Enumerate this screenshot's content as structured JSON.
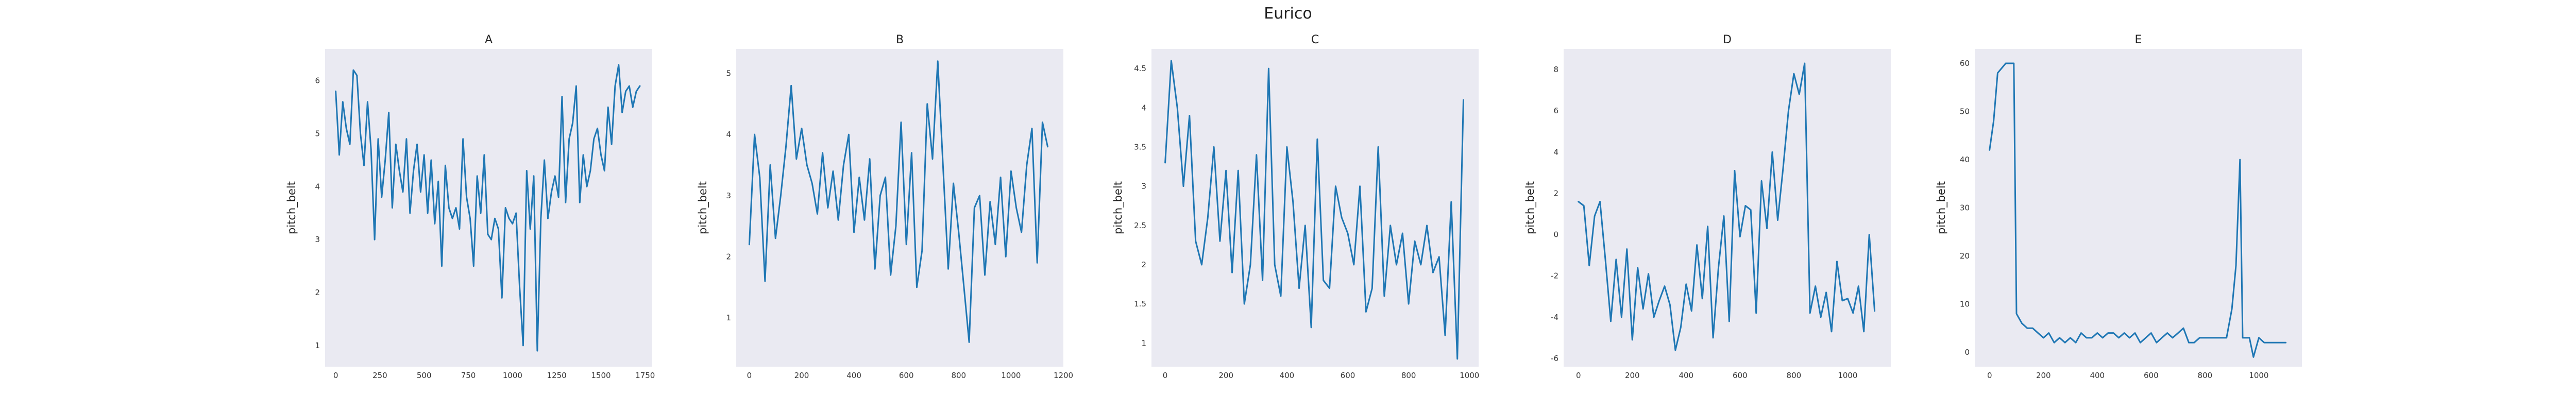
{
  "title": "Eurico",
  "series_color": "#1f77b4",
  "background_color": "#eaeaf2",
  "chart_data": [
    {
      "type": "line",
      "title": "A",
      "xlabel": "",
      "ylabel": "pitch_belt",
      "xlim": [
        -60,
        1790
      ],
      "ylim": [
        0.6,
        6.6
      ],
      "xticks": [
        0,
        250,
        500,
        750,
        1000,
        1250,
        1500,
        1750
      ],
      "yticks": [
        1,
        2,
        3,
        4,
        5,
        6
      ],
      "grid": false,
      "x": [
        0,
        20,
        40,
        60,
        80,
        100,
        120,
        140,
        160,
        180,
        200,
        220,
        240,
        260,
        280,
        300,
        320,
        340,
        360,
        380,
        400,
        420,
        440,
        460,
        480,
        500,
        520,
        540,
        560,
        580,
        600,
        620,
        640,
        660,
        680,
        700,
        720,
        740,
        760,
        780,
        800,
        820,
        840,
        860,
        880,
        900,
        920,
        940,
        960,
        980,
        1000,
        1020,
        1040,
        1060,
        1080,
        1100,
        1120,
        1140,
        1160,
        1180,
        1200,
        1220,
        1240,
        1260,
        1280,
        1300,
        1320,
        1340,
        1360,
        1380,
        1400,
        1420,
        1440,
        1460,
        1480,
        1500,
        1520,
        1540,
        1560,
        1580,
        1600,
        1620,
        1640,
        1660,
        1680,
        1700,
        1720
      ],
      "y": [
        5.8,
        4.6,
        5.6,
        5.1,
        4.8,
        6.2,
        6.1,
        5.0,
        4.4,
        5.6,
        4.7,
        3.0,
        4.9,
        3.8,
        4.5,
        5.4,
        3.6,
        4.8,
        4.3,
        3.9,
        4.9,
        3.5,
        4.3,
        4.8,
        3.9,
        4.6,
        3.5,
        4.5,
        3.3,
        4.1,
        2.5,
        4.4,
        3.6,
        3.4,
        3.6,
        3.2,
        4.9,
        3.8,
        3.4,
        2.5,
        4.2,
        3.5,
        4.6,
        3.1,
        3.0,
        3.4,
        3.2,
        1.9,
        3.6,
        3.4,
        3.3,
        3.5,
        2.1,
        1.0,
        4.3,
        3.2,
        4.2,
        0.9,
        3.4,
        4.5,
        3.4,
        3.9,
        4.2,
        3.8,
        5.7,
        3.7,
        4.9,
        5.2,
        5.9,
        3.7,
        4.6,
        4.0,
        4.3,
        4.9,
        5.1,
        4.6,
        4.3,
        5.5,
        4.8,
        5.9,
        6.3,
        5.4,
        5.8,
        5.9,
        5.5,
        5.8,
        5.9
      ]
    },
    {
      "type": "line",
      "title": "B",
      "xlabel": "",
      "ylabel": "pitch_belt",
      "xlim": [
        -50,
        1200
      ],
      "ylim": [
        0.2,
        5.4
      ],
      "xticks": [
        0,
        200,
        400,
        600,
        800,
        1000,
        1200
      ],
      "yticks": [
        1,
        2,
        3,
        4,
        5
      ],
      "grid": false,
      "x": [
        0,
        20,
        40,
        60,
        80,
        100,
        120,
        140,
        160,
        180,
        200,
        220,
        240,
        260,
        280,
        300,
        320,
        340,
        360,
        380,
        400,
        420,
        440,
        460,
        480,
        500,
        520,
        540,
        560,
        580,
        600,
        620,
        640,
        660,
        680,
        700,
        720,
        740,
        760,
        780,
        800,
        820,
        840,
        860,
        880,
        900,
        920,
        940,
        960,
        980,
        1000,
        1020,
        1040,
        1060,
        1080,
        1100,
        1120,
        1140
      ],
      "y": [
        2.2,
        4.0,
        3.3,
        1.6,
        3.5,
        2.3,
        3.0,
        3.8,
        4.8,
        3.6,
        4.1,
        3.5,
        3.2,
        2.7,
        3.7,
        2.8,
        3.4,
        2.6,
        3.5,
        4.0,
        2.4,
        3.3,
        2.6,
        3.6,
        1.8,
        3.0,
        3.3,
        1.7,
        2.5,
        4.2,
        2.2,
        3.7,
        1.5,
        2.1,
        4.5,
        3.6,
        5.2,
        3.5,
        1.8,
        3.2,
        2.4,
        1.5,
        0.6,
        2.8,
        3.0,
        1.7,
        2.9,
        2.2,
        3.3,
        2.0,
        3.4,
        2.8,
        2.4,
        3.5,
        4.1,
        1.9,
        4.2,
        3.8
      ]
    },
    {
      "type": "line",
      "title": "C",
      "xlabel": "",
      "ylabel": "pitch_belt",
      "xlim": [
        -45,
        1030
      ],
      "ylim": [
        0.7,
        4.75
      ],
      "xticks": [
        0,
        200,
        400,
        600,
        800,
        1000
      ],
      "yticks": [
        1.0,
        1.5,
        2.0,
        2.5,
        3.0,
        3.5,
        4.0,
        4.5
      ],
      "grid": false,
      "x": [
        0,
        20,
        40,
        60,
        80,
        100,
        120,
        140,
        160,
        180,
        200,
        220,
        240,
        260,
        280,
        300,
        320,
        340,
        360,
        380,
        400,
        420,
        440,
        460,
        480,
        500,
        520,
        540,
        560,
        580,
        600,
        620,
        640,
        660,
        680,
        700,
        720,
        740,
        760,
        780,
        800,
        820,
        840,
        860,
        880,
        900,
        920,
        940,
        960,
        980
      ],
      "y": [
        3.3,
        4.6,
        4.0,
        3.0,
        3.9,
        2.3,
        2.0,
        2.6,
        3.5,
        2.3,
        3.2,
        1.9,
        3.2,
        1.5,
        2.0,
        3.4,
        1.8,
        4.5,
        2.0,
        1.6,
        3.5,
        2.8,
        1.7,
        2.5,
        1.2,
        3.6,
        1.8,
        1.7,
        3.0,
        2.6,
        2.4,
        2.0,
        3.0,
        1.4,
        1.7,
        3.5,
        1.6,
        2.5,
        2.0,
        2.4,
        1.5,
        2.3,
        2.0,
        2.5,
        1.9,
        2.1,
        1.1,
        2.8,
        0.8,
        4.1
      ]
    },
    {
      "type": "line",
      "title": "D",
      "xlabel": "",
      "ylabel": "pitch_belt",
      "xlim": [
        -55,
        1160
      ],
      "ylim": [
        -6.4,
        9.0
      ],
      "xticks": [
        0,
        200,
        400,
        600,
        800,
        1000
      ],
      "yticks": [
        -6,
        -4,
        -2,
        0,
        2,
        4,
        6,
        8
      ],
      "grid": false,
      "x": [
        0,
        20,
        40,
        60,
        80,
        100,
        120,
        140,
        160,
        180,
        200,
        220,
        240,
        260,
        280,
        300,
        320,
        340,
        360,
        380,
        400,
        420,
        440,
        460,
        480,
        500,
        520,
        540,
        560,
        580,
        600,
        620,
        640,
        660,
        680,
        700,
        720,
        740,
        760,
        780,
        800,
        820,
        840,
        860,
        880,
        900,
        920,
        940,
        960,
        980,
        1000,
        1020,
        1040,
        1060,
        1080,
        1100
      ],
      "y": [
        1.6,
        1.4,
        -1.5,
        0.9,
        1.6,
        -1.2,
        -4.2,
        -1.2,
        -4.0,
        -0.7,
        -5.1,
        -1.6,
        -3.6,
        -1.9,
        -4.0,
        -3.2,
        -2.5,
        -3.4,
        -5.6,
        -4.5,
        -2.4,
        -3.7,
        -0.5,
        -3.1,
        0.4,
        -5.0,
        -1.6,
        0.9,
        -4.2,
        3.1,
        -0.1,
        1.4,
        1.2,
        -3.8,
        2.6,
        0.3,
        4.0,
        0.7,
        3.2,
        6.0,
        7.8,
        6.8,
        8.3,
        -3.8,
        -2.5,
        -4.0,
        -2.8,
        -4.7,
        -1.3,
        -3.2,
        -3.1,
        -3.8,
        -2.5,
        -4.7,
        0.0,
        -3.7
      ]
    },
    {
      "type": "line",
      "title": "E",
      "xlabel": "",
      "ylabel": "pitch_belt",
      "xlim": [
        -55,
        1160
      ],
      "ylim": [
        -3,
        63
      ],
      "xticks": [
        0,
        200,
        400,
        600,
        800,
        1000
      ],
      "yticks": [
        0,
        10,
        20,
        30,
        40,
        50,
        60
      ],
      "grid": false,
      "x": [
        0,
        15,
        30,
        45,
        60,
        75,
        90,
        100,
        120,
        140,
        160,
        180,
        200,
        220,
        240,
        260,
        280,
        300,
        320,
        340,
        360,
        380,
        400,
        420,
        440,
        460,
        480,
        500,
        520,
        540,
        560,
        580,
        600,
        620,
        640,
        660,
        680,
        700,
        720,
        740,
        760,
        780,
        800,
        820,
        840,
        860,
        880,
        900,
        915,
        930,
        940,
        950,
        965,
        980,
        1000,
        1020,
        1040,
        1060,
        1080,
        1100
      ],
      "y": [
        42,
        48,
        58,
        59,
        60,
        60,
        60,
        8,
        6,
        5,
        5,
        4,
        3,
        4,
        2,
        3,
        2,
        3,
        2,
        4,
        3,
        3,
        4,
        3,
        4,
        4,
        3,
        4,
        3,
        4,
        2,
        3,
        4,
        2,
        3,
        4,
        3,
        4,
        5,
        2,
        2,
        3,
        3,
        3,
        3,
        3,
        3,
        9,
        18,
        40,
        3,
        3,
        3,
        -1,
        3,
        2,
        2,
        2,
        2,
        2
      ]
    }
  ]
}
